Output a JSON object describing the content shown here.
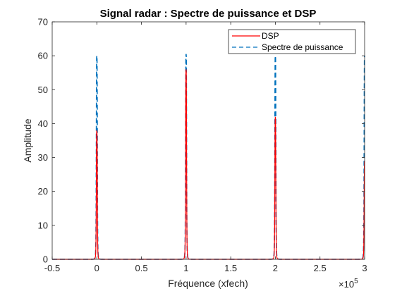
{
  "chart_data": {
    "type": "line",
    "title": "Signal radar : Spectre de puissance et DSP",
    "xlabel": "Fréquence (xfech)",
    "ylabel": "Amplitude",
    "x_exponent_label": "×10",
    "x_exponent_power": "5",
    "xlim": [
      -0.5,
      3
    ],
    "ylim": [
      0,
      70
    ],
    "x_tick_values": [
      -0.5,
      0,
      0.5,
      1,
      1.5,
      2,
      2.5,
      3
    ],
    "x_ticks": [
      "-0.5",
      "0",
      "0.5",
      "1",
      "1.5",
      "2",
      "2.5",
      "3"
    ],
    "y_tick_values": [
      0,
      10,
      20,
      30,
      40,
      50,
      60,
      70
    ],
    "y_ticks": [
      "0",
      "10",
      "20",
      "30",
      "40",
      "50",
      "60",
      "70"
    ],
    "grid": false,
    "legend_position": "top-right",
    "series": [
      {
        "name": "DSP",
        "color": "#ff0000",
        "style": "solid",
        "peaks": [
          {
            "x": 0,
            "y": 38
          },
          {
            "x": 1,
            "y": 56
          },
          {
            "x": 2,
            "y": 42
          },
          {
            "x": 3,
            "y": 29
          }
        ]
      },
      {
        "name": "Spectre de puissance",
        "color": "#0072bd",
        "style": "dashed",
        "peaks": [
          {
            "x": 0,
            "y": 60
          },
          {
            "x": 1,
            "y": 60.5
          },
          {
            "x": 2,
            "y": 60
          },
          {
            "x": 3,
            "y": 60
          }
        ]
      }
    ]
  }
}
